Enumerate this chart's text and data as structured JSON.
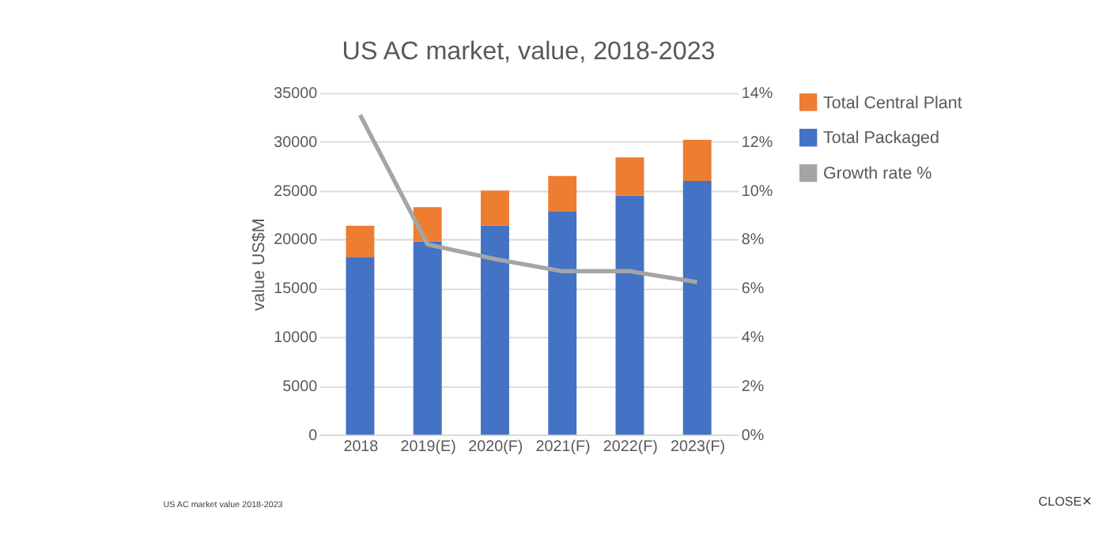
{
  "chart_data": {
    "type": "bar",
    "title": "US AC market, value, 2018-2023",
    "ylabel": "value US$M",
    "categories": [
      "2018",
      "2019(E)",
      "2020(F)",
      "2021(F)",
      "2022(F)",
      "2023(F)"
    ],
    "stacked": true,
    "series": [
      {
        "name": "Total Packaged",
        "color": "#4472c4",
        "values": [
          18200,
          19800,
          21400,
          22900,
          24500,
          26000
        ]
      },
      {
        "name": "Total Central Plant",
        "color": "#ed7d31",
        "values": [
          3200,
          3500,
          3600,
          3600,
          3900,
          4200
        ]
      },
      {
        "name": "Growth rate %",
        "color": "#a5a5a5",
        "type": "line",
        "axis": "y2",
        "values": [
          13.1,
          7.8,
          7.2,
          6.7,
          6.7,
          6.25
        ]
      }
    ],
    "ylim": [
      0,
      35000
    ],
    "yticks": [
      0,
      5000,
      10000,
      15000,
      20000,
      25000,
      30000,
      35000
    ],
    "y2lim": [
      0,
      14
    ],
    "y2ticks": [
      {
        "value": 0,
        "label": "0%"
      },
      {
        "value": 2,
        "label": "2%"
      },
      {
        "value": 4,
        "label": "4%"
      },
      {
        "value": 6,
        "label": "6%"
      },
      {
        "value": 8,
        "label": "8%"
      },
      {
        "value": 10,
        "label": "10%"
      },
      {
        "value": 12,
        "label": "12%"
      },
      {
        "value": 14,
        "label": "14%"
      }
    ],
    "grid": "y",
    "legend": "right",
    "marker": "none",
    "annotations": [
      "US AC market value 2018-2023",
      "CLOSE✕"
    ]
  }
}
